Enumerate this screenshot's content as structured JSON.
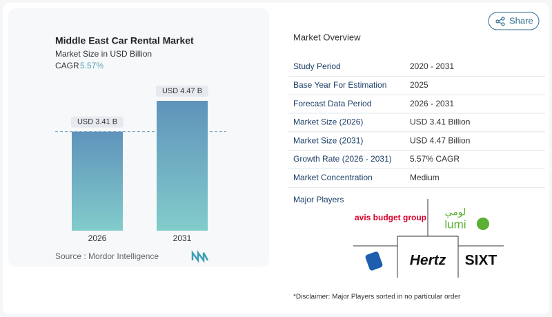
{
  "chart_data": {
    "type": "bar",
    "title": "Middle East Car Rental Market",
    "subtitle": "Market Size in USD Billion",
    "cagr_label": "CAGR",
    "cagr_value": "5.57%",
    "categories": [
      "2026",
      "2031"
    ],
    "values": [
      3.41,
      4.47
    ],
    "value_labels": [
      "USD 3.41 B",
      "USD 4.47 B"
    ],
    "color": "#5f93bb",
    "color_bottom": "#82cccb",
    "source": "Source : Mordor Intelligence"
  },
  "share_button": "Share",
  "overview": {
    "title": "Market Overview",
    "rows": [
      [
        "Study Period",
        "2020 - 2031"
      ],
      [
        "Base Year For Estimation",
        "2025"
      ],
      [
        "Forecast Data Period",
        "2026 - 2031"
      ],
      [
        "Market Size (2026)",
        "USD 3.41 Billion"
      ],
      [
        "Market Size (2031)",
        "USD 4.47 Billion"
      ],
      [
        "Growth Rate (2026 - 2031)",
        "5.57% CAGR"
      ],
      [
        "Market Concentration",
        "Medium"
      ]
    ]
  },
  "major_players": {
    "title": "Major Players",
    "logos": [
      "avis budget group",
      "لومي",
      "lumi",
      "Hertz",
      "SIXT"
    ]
  },
  "disclaimer": "*Disclaimer: Major Players sorted in no particular order"
}
